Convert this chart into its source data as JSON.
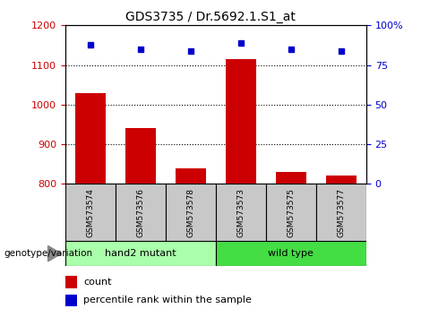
{
  "title": "GDS3735 / Dr.5692.1.S1_at",
  "samples": [
    "GSM573574",
    "GSM573576",
    "GSM573578",
    "GSM573573",
    "GSM573575",
    "GSM573577"
  ],
  "counts": [
    1030,
    940,
    840,
    1115,
    830,
    820
  ],
  "percentile_ranks": [
    88,
    85,
    84,
    89,
    85,
    84
  ],
  "ylim_left": [
    800,
    1200
  ],
  "ylim_right": [
    0,
    100
  ],
  "yticks_left": [
    800,
    900,
    1000,
    1100,
    1200
  ],
  "yticks_right": [
    0,
    25,
    50,
    75,
    100
  ],
  "bar_color": "#cc0000",
  "dot_color": "#0000cc",
  "groups": [
    {
      "label": "hand2 mutant",
      "color": "#aaffaa"
    },
    {
      "label": "wild type",
      "color": "#44dd44"
    }
  ],
  "group_label": "genotype/variation",
  "legend_count_label": "count",
  "legend_pct_label": "percentile rank within the sample",
  "tick_label_color_left": "#cc0000",
  "tick_label_color_right": "#0000cc",
  "bar_base": 800,
  "grid_color": "black",
  "bg_color": "#c8c8c8"
}
